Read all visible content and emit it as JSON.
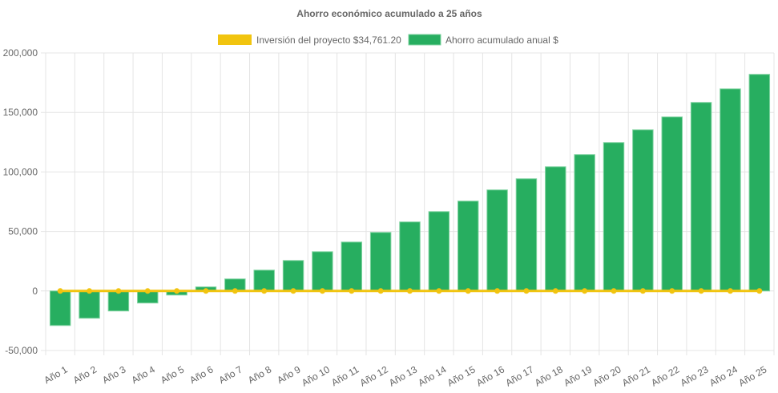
{
  "chart_data": {
    "type": "bar",
    "title": "Ahorro económico acumulado a 25 años",
    "xlabel": "",
    "ylabel": "",
    "ylim": [
      -50000,
      200000
    ],
    "yticks": [
      200000,
      150000,
      100000,
      50000,
      0,
      -50000
    ],
    "ytick_labels": [
      "200,000",
      "150,000",
      "100,000",
      "50,000",
      "0",
      "-50,000"
    ],
    "grid": true,
    "legend_position": "top",
    "categories": [
      "Año 1",
      "Año 2",
      "Año 3",
      "Año 4",
      "Año 5",
      "Año 6",
      "Año 7",
      "Año 8",
      "Año 9",
      "Año 10",
      "Año 11",
      "Año 12",
      "Año 13",
      "Año 14",
      "Año 15",
      "Año 16",
      "Año 17",
      "Año 18",
      "Año 19",
      "Año 20",
      "Año 21",
      "Año 22",
      "Año 23",
      "Año 24",
      "Año 25"
    ],
    "series": [
      {
        "name": "Inversión del proyecto $34,761.20",
        "type": "line",
        "color": "#f1c40f",
        "values": [
          0,
          0,
          0,
          0,
          0,
          0,
          0,
          0,
          0,
          0,
          0,
          0,
          0,
          0,
          0,
          0,
          0,
          0,
          0,
          0,
          0,
          0,
          0,
          0,
          0
        ]
      },
      {
        "name": "Ahorro acumulado anual $",
        "type": "bar",
        "color": "#27ae60",
        "values": [
          -29000,
          -22900,
          -16800,
          -10100,
          -3400,
          3400,
          10100,
          17500,
          25600,
          33000,
          41100,
          49200,
          58000,
          66700,
          75500,
          84900,
          94300,
          104400,
          114600,
          124700,
          135400,
          146200,
          158400,
          169800,
          182000
        ]
      }
    ]
  }
}
